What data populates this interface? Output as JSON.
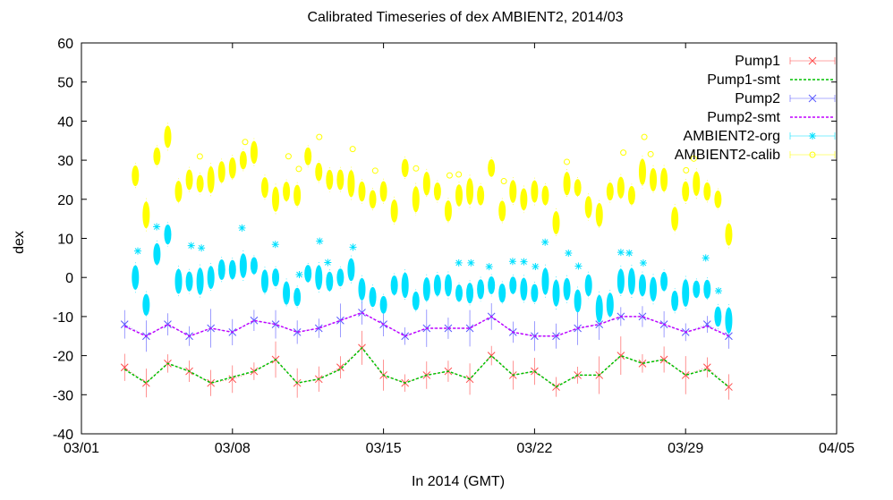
{
  "chart_data": {
    "type": "scatter",
    "title": "Calibrated Timeseries of dex AMBIENT2, 2014/03",
    "xlabel": "In 2014 (GMT)",
    "ylabel": "dex",
    "xlim": [
      "2014-03-01",
      "2014-04-05"
    ],
    "ylim": [
      -40,
      60
    ],
    "x_ticks": [
      "03/01",
      "03/08",
      "03/15",
      "03/22",
      "03/29",
      "04/05"
    ],
    "y_ticks": [
      "-40",
      "-30",
      "-20",
      "-10",
      "0",
      "10",
      "20",
      "30",
      "40",
      "50",
      "60"
    ],
    "grid": false,
    "legend_position": "top-right",
    "series": [
      {
        "name": "Pump1",
        "color": "#ff4b4b",
        "marker": "x",
        "x": [
          "2014-03-03",
          "2014-03-04",
          "2014-03-05",
          "2014-03-06",
          "2014-03-07",
          "2014-03-08",
          "2014-03-09",
          "2014-03-10",
          "2014-03-11",
          "2014-03-12",
          "2014-03-13",
          "2014-03-14",
          "2014-03-15",
          "2014-03-16",
          "2014-03-17",
          "2014-03-18",
          "2014-03-19",
          "2014-03-20",
          "2014-03-21",
          "2014-03-22",
          "2014-03-23",
          "2014-03-24",
          "2014-03-25",
          "2014-03-26",
          "2014-03-27",
          "2014-03-28",
          "2014-03-29",
          "2014-03-30",
          "2014-03-31"
        ],
        "y": [
          -23,
          -27,
          -22,
          -24,
          -27,
          -26,
          -24,
          -21,
          -27,
          -26,
          -23,
          -18,
          -25,
          -27,
          -25,
          -24,
          -26,
          -20,
          -25,
          -24,
          -28,
          -25,
          -25,
          -20,
          -22,
          -21,
          -25,
          -23,
          -28
        ]
      },
      {
        "name": "Pump1-smt",
        "color": "#00c000",
        "marker": "line",
        "x": [
          "2014-03-03",
          "2014-03-04",
          "2014-03-05",
          "2014-03-06",
          "2014-03-07",
          "2014-03-08",
          "2014-03-09",
          "2014-03-10",
          "2014-03-11",
          "2014-03-12",
          "2014-03-13",
          "2014-03-14",
          "2014-03-15",
          "2014-03-16",
          "2014-03-17",
          "2014-03-18",
          "2014-03-19",
          "2014-03-20",
          "2014-03-21",
          "2014-03-22",
          "2014-03-23",
          "2014-03-24",
          "2014-03-25",
          "2014-03-26",
          "2014-03-27",
          "2014-03-28",
          "2014-03-29",
          "2014-03-30",
          "2014-03-31"
        ],
        "y": [
          -23.5,
          -27,
          -22,
          -24,
          -27,
          -25.5,
          -24,
          -21,
          -27,
          -26,
          -23.5,
          -18,
          -25,
          -27,
          -25,
          -24,
          -26,
          -20,
          -25,
          -24,
          -28,
          -25,
          -25,
          -20,
          -22,
          -21,
          -25,
          -23.5,
          -28
        ]
      },
      {
        "name": "Pump2",
        "color": "#5a5aff",
        "marker": "x",
        "x": [
          "2014-03-03",
          "2014-03-04",
          "2014-03-05",
          "2014-03-06",
          "2014-03-07",
          "2014-03-08",
          "2014-03-09",
          "2014-03-10",
          "2014-03-11",
          "2014-03-12",
          "2014-03-13",
          "2014-03-14",
          "2014-03-15",
          "2014-03-16",
          "2014-03-17",
          "2014-03-18",
          "2014-03-19",
          "2014-03-20",
          "2014-03-21",
          "2014-03-22",
          "2014-03-23",
          "2014-03-24",
          "2014-03-25",
          "2014-03-26",
          "2014-03-27",
          "2014-03-28",
          "2014-03-29",
          "2014-03-30",
          "2014-03-31"
        ],
        "y": [
          -12,
          -15,
          -12,
          -15,
          -13,
          -14,
          -11,
          -12,
          -14,
          -13,
          -11,
          -9,
          -12,
          -15,
          -13,
          -13,
          -13,
          -10,
          -14,
          -15,
          -15,
          -13,
          -12,
          -10,
          -10,
          -12,
          -14,
          -12,
          -15
        ]
      },
      {
        "name": "Pump2-smt",
        "color": "#c000ff",
        "marker": "line",
        "x": [
          "2014-03-03",
          "2014-03-04",
          "2014-03-05",
          "2014-03-06",
          "2014-03-07",
          "2014-03-08",
          "2014-03-09",
          "2014-03-10",
          "2014-03-11",
          "2014-03-12",
          "2014-03-13",
          "2014-03-14",
          "2014-03-15",
          "2014-03-16",
          "2014-03-17",
          "2014-03-18",
          "2014-03-19",
          "2014-03-20",
          "2014-03-21",
          "2014-03-22",
          "2014-03-23",
          "2014-03-24",
          "2014-03-25",
          "2014-03-26",
          "2014-03-27",
          "2014-03-28",
          "2014-03-29",
          "2014-03-30",
          "2014-03-31"
        ],
        "y": [
          -12.5,
          -15,
          -12,
          -15,
          -13,
          -14,
          -11,
          -12,
          -14,
          -13,
          -11,
          -9,
          -12,
          -15,
          -13,
          -13,
          -13,
          -10,
          -14,
          -15,
          -15,
          -13,
          -12,
          -10,
          -10,
          -12,
          -14,
          -12.5,
          -15
        ]
      },
      {
        "name": "AMBIENT2-org",
        "color": "#00e0ff",
        "marker": "star",
        "x": [
          "2014-03-03.5",
          "2014-03-04",
          "2014-03-04.5",
          "2014-03-05",
          "2014-03-05.5",
          "2014-03-06",
          "2014-03-06.5",
          "2014-03-07",
          "2014-03-07.5",
          "2014-03-08",
          "2014-03-08.5",
          "2014-03-09",
          "2014-03-09.5",
          "2014-03-10",
          "2014-03-10.5",
          "2014-03-11",
          "2014-03-11.5",
          "2014-03-12",
          "2014-03-12.5",
          "2014-03-13",
          "2014-03-13.5",
          "2014-03-14",
          "2014-03-14.5",
          "2014-03-15",
          "2014-03-15.5",
          "2014-03-16",
          "2014-03-16.5",
          "2014-03-17",
          "2014-03-17.5",
          "2014-03-18",
          "2014-03-18.5",
          "2014-03-19",
          "2014-03-19.5",
          "2014-03-20",
          "2014-03-20.5",
          "2014-03-21",
          "2014-03-21.5",
          "2014-03-22",
          "2014-03-22.5",
          "2014-03-23",
          "2014-03-23.5",
          "2014-03-24",
          "2014-03-24.5",
          "2014-03-25",
          "2014-03-25.5",
          "2014-03-26",
          "2014-03-26.5",
          "2014-03-27",
          "2014-03-27.5",
          "2014-03-28",
          "2014-03-28.5",
          "2014-03-29",
          "2014-03-29.5",
          "2014-03-30",
          "2014-03-30.5",
          "2014-03-31"
        ],
        "y": [
          0,
          -7,
          6,
          11,
          -1,
          -1,
          -1,
          0,
          2,
          2,
          3,
          3,
          -1,
          0,
          -4,
          -5,
          1,
          0,
          -1,
          0,
          2,
          -3,
          -5,
          -7,
          -2,
          -2,
          -6,
          -3,
          -2,
          -2,
          -4,
          -4,
          -3,
          -2,
          -4,
          -2,
          -3,
          -4,
          -1,
          -4,
          -3,
          -6,
          -2,
          -8,
          -7,
          -1,
          -1,
          -2,
          -3,
          -1,
          -6,
          -4,
          -3,
          -3,
          -10,
          -11
        ]
      },
      {
        "name": "AMBIENT2-calib",
        "color": "#ffff00",
        "marker": "circle",
        "x": [
          "2014-03-03.5",
          "2014-03-04",
          "2014-03-04.5",
          "2014-03-05",
          "2014-03-05.5",
          "2014-03-06",
          "2014-03-06.5",
          "2014-03-07",
          "2014-03-07.5",
          "2014-03-08",
          "2014-03-08.5",
          "2014-03-09",
          "2014-03-09.5",
          "2014-03-10",
          "2014-03-10.5",
          "2014-03-11",
          "2014-03-11.5",
          "2014-03-12",
          "2014-03-12.5",
          "2014-03-13",
          "2014-03-13.5",
          "2014-03-14",
          "2014-03-14.5",
          "2014-03-15",
          "2014-03-15.5",
          "2014-03-16",
          "2014-03-16.5",
          "2014-03-17",
          "2014-03-17.5",
          "2014-03-18",
          "2014-03-18.5",
          "2014-03-19",
          "2014-03-19.5",
          "2014-03-20",
          "2014-03-20.5",
          "2014-03-21",
          "2014-03-21.5",
          "2014-03-22",
          "2014-03-22.5",
          "2014-03-23",
          "2014-03-23.5",
          "2014-03-24",
          "2014-03-24.5",
          "2014-03-25",
          "2014-03-25.5",
          "2014-03-26",
          "2014-03-26.5",
          "2014-03-27",
          "2014-03-27.5",
          "2014-03-28",
          "2014-03-28.5",
          "2014-03-29",
          "2014-03-29.5",
          "2014-03-30",
          "2014-03-30.5",
          "2014-03-31"
        ],
        "y": [
          26,
          16,
          31,
          36,
          22,
          25,
          24,
          25,
          27,
          28,
          30,
          32,
          23,
          20,
          22,
          21,
          31,
          27,
          25,
          25,
          24,
          22,
          20,
          22,
          17,
          28,
          20,
          24,
          22,
          17,
          21,
          22,
          21,
          28,
          17,
          22,
          20,
          22,
          21,
          14,
          24,
          23,
          18,
          16,
          22,
          23,
          21,
          27,
          25,
          25,
          15,
          22,
          24,
          22,
          20,
          11
        ]
      }
    ]
  }
}
